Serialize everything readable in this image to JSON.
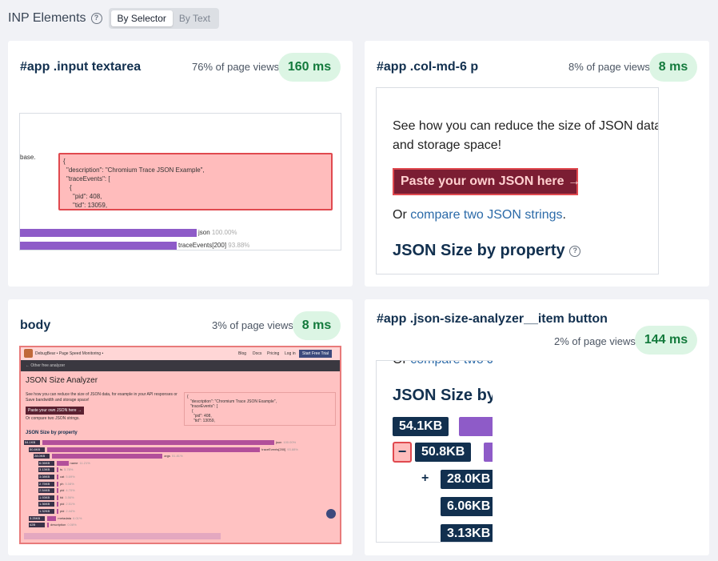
{
  "header": {
    "title": "INP Elements",
    "toggle": {
      "selected": "By Selector",
      "other": "By Text"
    }
  },
  "cards": [
    {
      "selector": "#app .input textarea",
      "page_views": "76% of page views",
      "inp": "160 ms",
      "shot": {
        "side_text": "base.",
        "json_lines": [
          "{",
          "\"description\": \"Chromium Trace JSON Example\",",
          "\"traceEvents\": [",
          "{",
          "\"pid\": 408,",
          "\"tid\": 13059,"
        ],
        "bars": [
          {
            "label": "json",
            "pct": "100.00%",
            "fill": 1.0
          },
          {
            "label": "traceEvents[200]",
            "pct": "93.88%",
            "fill": 0.9388
          }
        ]
      }
    },
    {
      "selector": "#app .col-md-6 p",
      "page_views": "8% of page views",
      "inp": "8 ms",
      "shot": {
        "text1": "See how you can reduce the size of JSON data,",
        "text2": "and storage space!",
        "button": "Paste your own JSON here →",
        "or": "Or ",
        "or_link": "compare two JSON strings",
        "or_end": ".",
        "heading": "JSON Size by property"
      }
    },
    {
      "selector": "body",
      "page_views": "3% of page views",
      "inp": "8 ms",
      "shot": {
        "brand": "DebugBear • Page Speed Monitoring •",
        "nav": [
          "Blog",
          "Docs",
          "Pricing",
          "Log in"
        ],
        "cta": "Start Free Trial",
        "back": "← Other free analyzer",
        "title": "JSON Size Analyzer",
        "intro1": "See how you can reduce the size of JSON data, for example in your API responses or database.",
        "intro2": "Save bandwidth and storage space!",
        "paste": "Paste your own JSON here →",
        "compare": "Or compare two JSON strings.",
        "json_preview": [
          "{",
          "\"description\": \"Chromium Trace JSON Example\",",
          "\"traceEvents\": [",
          "{",
          "\"pid\": 408,",
          "\"tid\": 13059,"
        ],
        "heading": "JSON Size by property",
        "rows": [
          {
            "size": "54.1KB",
            "label": "json",
            "pct": "100.00%",
            "fill": 1.0
          },
          {
            "size": "50.8KB",
            "label": "traceEvents[200]",
            "pct": "93.88%",
            "fill": 0.9388
          },
          {
            "size": "28.0KB",
            "label": "args",
            "pct": "51.81%",
            "fill": 0.5181
          },
          {
            "size": "6.06KB",
            "label": "name",
            "pct": "11.21%",
            "fill": 0.1121
          },
          {
            "size": "3.13KB",
            "label": "ts",
            "pct": "5.78%",
            "fill": 0.0578
          },
          {
            "size": "3.08KB",
            "label": "cat",
            "pct": "5.69%",
            "fill": 0.0569
          },
          {
            "size": "2.75KB",
            "label": "ph",
            "pct": "5.08%",
            "fill": 0.0508
          },
          {
            "size": "2.54KB",
            "label": "pid",
            "pct": "4.70%",
            "fill": 0.047
          },
          {
            "size": "1.93KB",
            "label": "tid",
            "pct": "3.56%",
            "fill": 0.0356
          },
          {
            "size": "1.36KB",
            "label": "pid",
            "pct": "2.51%",
            "fill": 0.0251
          },
          {
            "size": "1.32KB",
            "label": "pid",
            "pct": "2.44%",
            "fill": 0.0244
          },
          {
            "size": "3.25KB",
            "label": "metadata",
            "pct": "6.01%",
            "fill": 0.0601
          },
          {
            "size": "42B",
            "label": "description",
            "pct": "0.08%",
            "fill": 0.0008
          }
        ]
      }
    },
    {
      "selector": "#app .json-size-analyzer__item button",
      "page_views": "2% of page views",
      "inp": "144 ms",
      "shot": {
        "top_text": "Or ",
        "top_link": "compare two J",
        "heading": "JSON Size by",
        "minus": "−",
        "plus": "+",
        "sizes": [
          "54.1KB",
          "50.8KB",
          "28.0KB",
          "6.06KB",
          "3.13KB"
        ]
      }
    }
  ],
  "colors": {
    "badge_bg": "#dcf5e4",
    "badge_text": "#137a3c",
    "highlight": "#ffbcbc",
    "highlight_border": "#e0494f",
    "navy": "#12304f",
    "purple": "#8e5bc8"
  }
}
